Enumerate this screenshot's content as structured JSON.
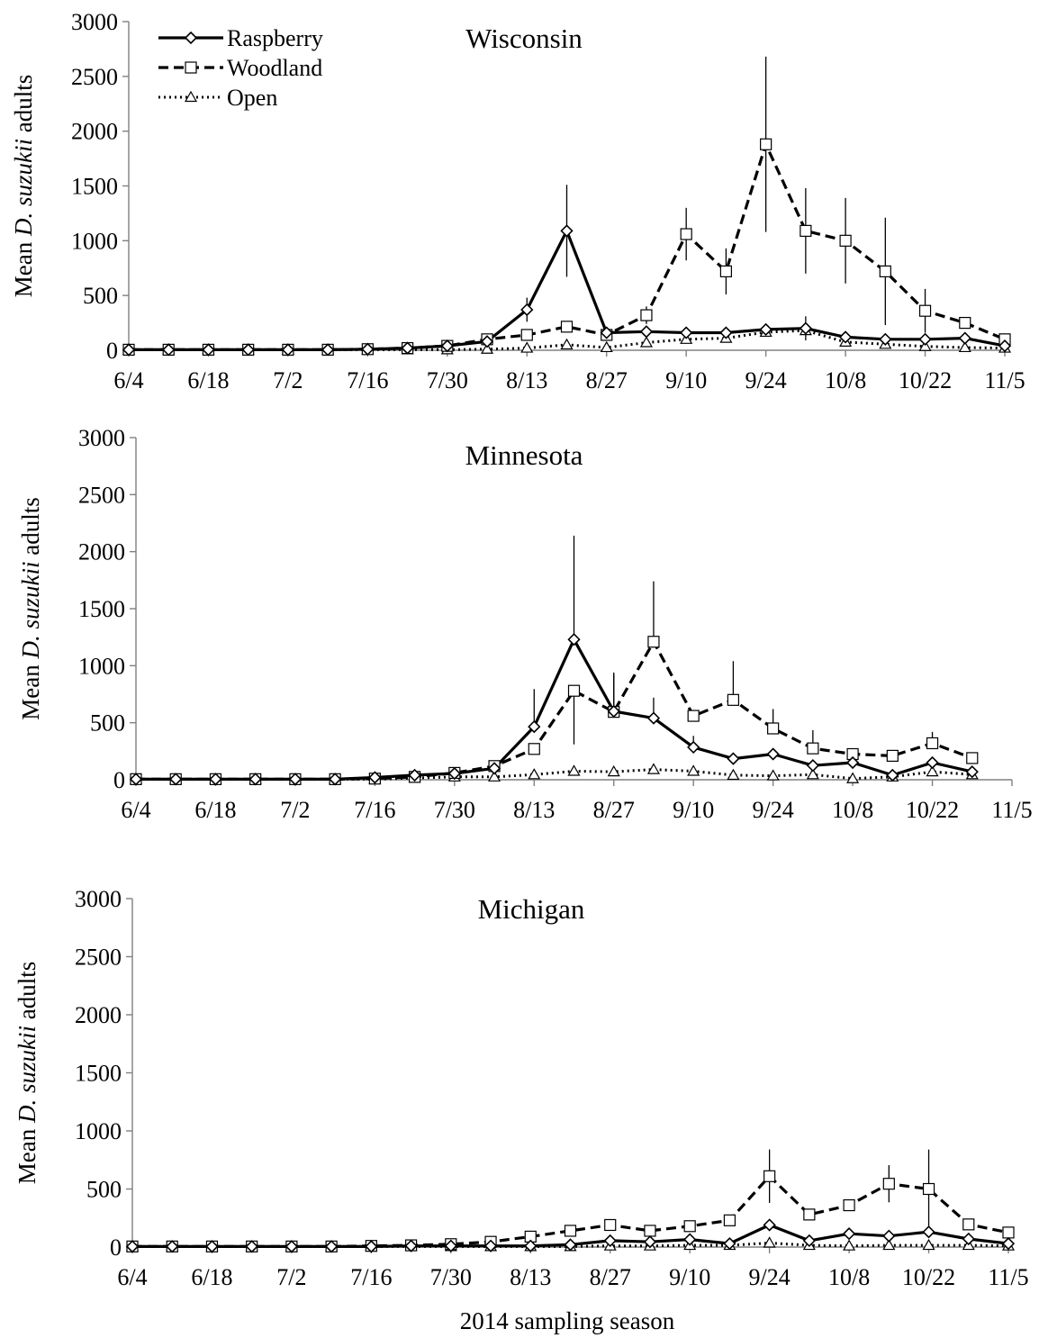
{
  "figure": {
    "xlabel": "2014 sampling season",
    "ylabel_prefix": "Mean ",
    "ylabel_italic": "D. suzukii",
    "ylabel_suffix": " adults",
    "ylim": [
      0,
      3000
    ],
    "yticks": [
      "0",
      "500",
      "1000",
      "1500",
      "2000",
      "2500",
      "3000"
    ],
    "xticks": [
      "6/4",
      "6/18",
      "7/2",
      "7/16",
      "7/30",
      "8/13",
      "8/27",
      "9/10",
      "9/24",
      "10/8",
      "10/22",
      "11/5"
    ],
    "legend": {
      "placement": "top-left",
      "entries": [
        {
          "label": "Raspberry",
          "style": "solid",
          "marker": "diamond"
        },
        {
          "label": "Woodland",
          "style": "dashed",
          "marker": "square"
        },
        {
          "label": "Open",
          "style": "dotted",
          "marker": "triangle"
        }
      ]
    }
  },
  "chart_data": [
    {
      "type": "line",
      "title": "Wisconsin",
      "x_unit": "days from 6/4",
      "x": [
        0,
        7,
        14,
        21,
        28,
        35,
        42,
        49,
        56,
        63,
        70,
        77,
        84,
        91,
        98,
        105,
        112,
        119,
        126,
        133,
        140,
        147,
        154
      ],
      "series": [
        {
          "name": "Raspberry",
          "values": [
            5,
            5,
            5,
            5,
            5,
            5,
            10,
            20,
            40,
            80,
            370,
            1090,
            160,
            170,
            160,
            160,
            190,
            200,
            120,
            100,
            100,
            110,
            40
          ],
          "errors": [
            0,
            0,
            0,
            0,
            0,
            0,
            0,
            0,
            0,
            0,
            110,
            420,
            0,
            0,
            0,
            0,
            40,
            110,
            0,
            0,
            0,
            0,
            0
          ]
        },
        {
          "name": "Woodland",
          "values": [
            5,
            5,
            5,
            5,
            5,
            5,
            10,
            20,
            40,
            100,
            140,
            215,
            140,
            320,
            1060,
            720,
            1880,
            1090,
            1000,
            720,
            360,
            250,
            100
          ],
          "errors": [
            0,
            0,
            0,
            0,
            0,
            0,
            0,
            0,
            0,
            0,
            0,
            0,
            0,
            80,
            240,
            210,
            800,
            390,
            390,
            490,
            200,
            0,
            0
          ]
        },
        {
          "name": "Open",
          "values": [
            5,
            5,
            5,
            5,
            5,
            5,
            5,
            5,
            5,
            10,
            20,
            50,
            25,
            70,
            100,
            110,
            165,
            180,
            75,
            55,
            35,
            25,
            20
          ],
          "errors": [
            0,
            0,
            0,
            0,
            0,
            0,
            0,
            0,
            0,
            0,
            0,
            0,
            0,
            0,
            0,
            0,
            0,
            0,
            0,
            0,
            0,
            0,
            0
          ]
        }
      ]
    },
    {
      "type": "line",
      "title": "Minnesota",
      "x_unit": "days from 6/4",
      "x": [
        0,
        7,
        14,
        21,
        28,
        35,
        42,
        49,
        56,
        63,
        70,
        77,
        84,
        91,
        98,
        105,
        112,
        119,
        126,
        133,
        140,
        147
      ],
      "series": [
        {
          "name": "Raspberry",
          "values": [
            5,
            5,
            5,
            5,
            5,
            5,
            20,
            40,
            55,
            100,
            465,
            1230,
            600,
            540,
            285,
            185,
            225,
            125,
            150,
            40,
            150,
            70
          ],
          "errors": [
            0,
            0,
            0,
            0,
            0,
            0,
            0,
            0,
            0,
            0,
            330,
            910,
            340,
            180,
            100,
            0,
            0,
            0,
            0,
            0,
            0,
            0
          ],
          "error_dir": [
            0,
            0,
            0,
            0,
            0,
            0,
            0,
            0,
            0,
            0,
            1,
            1,
            1,
            1,
            1,
            0,
            0,
            0,
            0,
            0,
            0,
            0
          ]
        },
        {
          "name": "Woodland",
          "values": [
            5,
            5,
            5,
            5,
            5,
            5,
            10,
            25,
            60,
            120,
            270,
            780,
            595,
            1210,
            560,
            700,
            450,
            275,
            225,
            210,
            320,
            190
          ],
          "errors": [
            0,
            0,
            0,
            0,
            0,
            0,
            0,
            0,
            0,
            0,
            0,
            470,
            330,
            530,
            0,
            340,
            170,
            160,
            0,
            0,
            100,
            0
          ],
          "error_dir": [
            0,
            0,
            0,
            0,
            0,
            0,
            0,
            0,
            0,
            0,
            0,
            -1,
            1,
            1,
            0,
            1,
            1,
            1,
            0,
            0,
            1,
            0
          ]
        },
        {
          "name": "Open",
          "values": [
            5,
            5,
            5,
            5,
            5,
            5,
            5,
            15,
            25,
            25,
            45,
            75,
            70,
            90,
            75,
            40,
            35,
            45,
            10,
            25,
            70,
            45
          ],
          "errors": [
            0,
            0,
            0,
            0,
            0,
            0,
            0,
            0,
            0,
            0,
            0,
            0,
            0,
            0,
            0,
            0,
            0,
            0,
            0,
            0,
            0,
            0
          ]
        }
      ]
    },
    {
      "type": "line",
      "title": "Michigan",
      "x_unit": "days from 6/4",
      "x": [
        0,
        7,
        14,
        21,
        28,
        35,
        42,
        49,
        56,
        63,
        70,
        77,
        84,
        91,
        98,
        105,
        112,
        119,
        126,
        133,
        140,
        147,
        154
      ],
      "series": [
        {
          "name": "Raspberry",
          "values": [
            5,
            5,
            5,
            5,
            5,
            5,
            5,
            10,
            10,
            10,
            10,
            20,
            55,
            45,
            65,
            30,
            190,
            55,
            115,
            95,
            130,
            70,
            30
          ],
          "errors": [
            0,
            0,
            0,
            0,
            0,
            0,
            0,
            0,
            0,
            0,
            0,
            0,
            0,
            0,
            0,
            0,
            0,
            0,
            0,
            0,
            0,
            0,
            0
          ]
        },
        {
          "name": "Woodland",
          "values": [
            5,
            5,
            5,
            5,
            5,
            5,
            10,
            15,
            25,
            45,
            90,
            140,
            190,
            140,
            180,
            230,
            610,
            280,
            360,
            545,
            500,
            195,
            125
          ],
          "errors": [
            0,
            0,
            0,
            0,
            0,
            0,
            0,
            0,
            0,
            0,
            0,
            0,
            0,
            0,
            0,
            0,
            230,
            0,
            0,
            160,
            340,
            0,
            0
          ]
        },
        {
          "name": "Open",
          "values": [
            5,
            5,
            5,
            5,
            5,
            5,
            5,
            5,
            5,
            5,
            5,
            5,
            10,
            10,
            15,
            15,
            35,
            15,
            10,
            15,
            15,
            15,
            10
          ],
          "errors": [
            0,
            0,
            0,
            0,
            0,
            0,
            0,
            0,
            0,
            0,
            0,
            0,
            0,
            0,
            0,
            0,
            0,
            0,
            0,
            0,
            0,
            0,
            0
          ]
        }
      ]
    }
  ]
}
